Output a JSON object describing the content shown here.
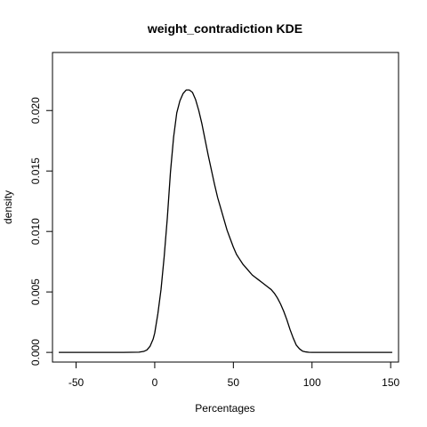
{
  "chart_data": {
    "type": "line",
    "title": "weight_contradiction  KDE",
    "xlabel": "Percentages",
    "ylabel": "density",
    "xlim": [
      -65,
      155
    ],
    "ylim": [
      -0.0008,
      0.0248
    ],
    "x_ticks": [
      -50,
      0,
      50,
      100,
      150
    ],
    "x_tick_labels": [
      "-50",
      "0",
      "50",
      "100",
      "150"
    ],
    "y_ticks": [
      0.0,
      0.005,
      0.01,
      0.015,
      0.02
    ],
    "y_tick_labels": [
      "0.000",
      "0.005",
      "0.010",
      "0.015",
      "0.020"
    ],
    "grid": false,
    "legend": "none",
    "line_color": "#000000",
    "series": [
      {
        "x": [
          -61,
          -30,
          -20,
          -10,
          -7,
          -5,
          -3,
          -1,
          0,
          1,
          2,
          4,
          6,
          8,
          10,
          12,
          14,
          16,
          18,
          20,
          22,
          23,
          24,
          26,
          28,
          30,
          32,
          34,
          36,
          38,
          40,
          42,
          44,
          46,
          48,
          50,
          52,
          54,
          56,
          58,
          60,
          62,
          64,
          66,
          68,
          70,
          72,
          74,
          76,
          78,
          80,
          82,
          84,
          86,
          88,
          90,
          92,
          94,
          96,
          98,
          100,
          110,
          125,
          151
        ],
        "y": [
          0.0,
          0.0,
          0.0,
          2e-05,
          8e-05,
          0.0002,
          0.0005,
          0.0011,
          0.0016,
          0.0024,
          0.0032,
          0.0052,
          0.0079,
          0.0111,
          0.0149,
          0.0178,
          0.0198,
          0.0208,
          0.0214,
          0.0217,
          0.0217,
          0.0216,
          0.0215,
          0.0209,
          0.02,
          0.0189,
          0.0176,
          0.0163,
          0.0151,
          0.0139,
          0.0128,
          0.0119,
          0.011,
          0.0101,
          0.0094,
          0.0087,
          0.0081,
          0.0077,
          0.0073,
          0.007,
          0.0067,
          0.0064,
          0.0062,
          0.006,
          0.0058,
          0.0056,
          0.0054,
          0.0052,
          0.0049,
          0.0045,
          0.004,
          0.0034,
          0.0027,
          0.0019,
          0.0012,
          0.0006,
          0.0003,
          0.0001,
          4e-05,
          1e-05,
          0.0,
          0.0,
          0.0,
          0.0
        ]
      }
    ]
  }
}
